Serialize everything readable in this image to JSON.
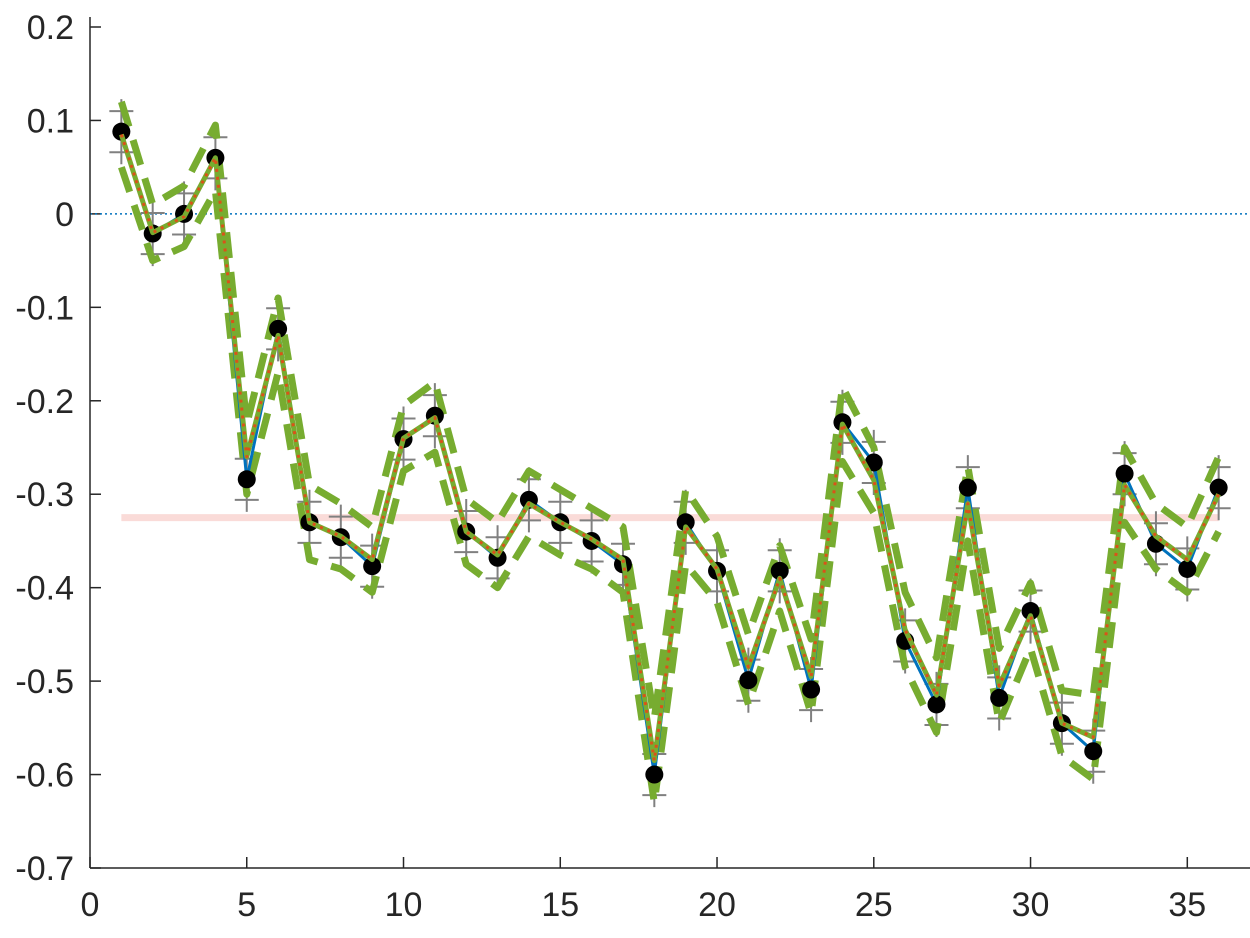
{
  "chart_data": {
    "type": "line",
    "x": [
      1,
      2,
      3,
      4,
      5,
      6,
      7,
      8,
      9,
      10,
      11,
      12,
      13,
      14,
      15,
      16,
      17,
      18,
      19,
      20,
      21,
      22,
      23,
      24,
      25,
      26,
      27,
      28,
      29,
      30,
      31,
      32,
      33,
      34,
      35,
      36
    ],
    "xlim": [
      0,
      37
    ],
    "xticks": [
      0,
      5,
      10,
      15,
      20,
      25,
      30,
      35
    ],
    "ylim": [
      -0.7,
      0.2
    ],
    "yticks": [
      -0.7,
      -0.6,
      -0.5,
      -0.4,
      -0.3,
      -0.2,
      -0.1,
      0,
      0.1,
      0.2
    ],
    "zero_line": true,
    "zero_line_color": "#0072bd",
    "hline": {
      "value": -0.325,
      "from": 1,
      "to": 36,
      "color": "#fadbd8"
    },
    "series": [
      {
        "style": "dashed",
        "color": "#77ac30",
        "width": 7,
        "values": [
          0.12,
          0.01,
          0.03,
          0.095,
          -0.225,
          -0.09,
          -0.29,
          -0.31,
          -0.335,
          -0.205,
          -0.18,
          -0.305,
          -0.33,
          -0.275,
          -0.295,
          -0.315,
          -0.335,
          -0.54,
          -0.295,
          -0.345,
          -0.45,
          -0.355,
          -0.455,
          -0.185,
          -0.25,
          -0.405,
          -0.475,
          -0.27,
          -0.465,
          -0.395,
          -0.51,
          -0.515,
          -0.25,
          -0.31,
          -0.335,
          -0.26
        ]
      },
      {
        "style": "dashed",
        "color": "#77ac30",
        "width": 7,
        "values": [
          0.05,
          -0.05,
          -0.035,
          0.025,
          -0.3,
          -0.17,
          -0.37,
          -0.38,
          -0.405,
          -0.275,
          -0.255,
          -0.375,
          -0.4,
          -0.345,
          -0.365,
          -0.38,
          -0.405,
          -0.63,
          -0.375,
          -0.415,
          -0.525,
          -0.425,
          -0.535,
          -0.265,
          -0.32,
          -0.485,
          -0.555,
          -0.35,
          -0.545,
          -0.465,
          -0.58,
          -0.605,
          -0.33,
          -0.38,
          -0.405,
          -0.34
        ]
      },
      {
        "style": "solid",
        "color": "#0072bd",
        "width": 3,
        "marker_color": "#000000",
        "error": 0.022,
        "error_color": "#808080",
        "values": [
          0.088,
          -0.021,
          0.0,
          0.06,
          -0.284,
          -0.123,
          -0.33,
          -0.346,
          -0.377,
          -0.241,
          -0.216,
          -0.34,
          -0.368,
          -0.306,
          -0.33,
          -0.35,
          -0.375,
          -0.6,
          -0.33,
          -0.382,
          -0.499,
          -0.382,
          -0.509,
          -0.223,
          -0.266,
          -0.457,
          -0.525,
          -0.293,
          -0.518,
          -0.425,
          -0.545,
          -0.575,
          -0.278,
          -0.353,
          -0.38,
          -0.293
        ]
      },
      {
        "style": "solid",
        "color": "#77ac30",
        "width": 5,
        "overlay_color": "#d95319",
        "values": [
          0.085,
          -0.02,
          -0.003,
          0.06,
          -0.26,
          -0.13,
          -0.33,
          -0.345,
          -0.37,
          -0.24,
          -0.218,
          -0.34,
          -0.365,
          -0.31,
          -0.33,
          -0.348,
          -0.37,
          -0.585,
          -0.335,
          -0.38,
          -0.485,
          -0.39,
          -0.495,
          -0.225,
          -0.285,
          -0.445,
          -0.515,
          -0.31,
          -0.505,
          -0.43,
          -0.545,
          -0.56,
          -0.29,
          -0.345,
          -0.37,
          -0.3
        ]
      }
    ]
  }
}
